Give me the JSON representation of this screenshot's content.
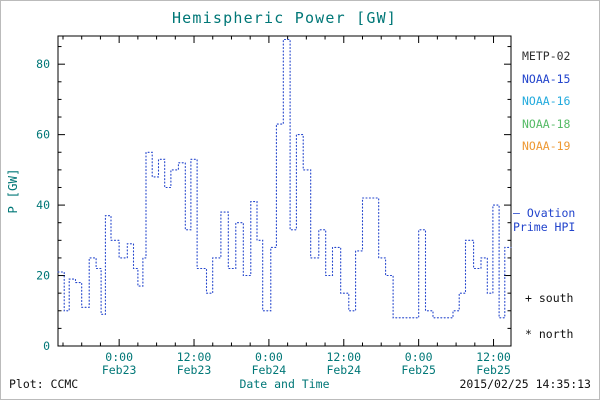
{
  "legend": {
    "satellites": [
      {
        "label": "METP-02",
        "color": "#303030"
      },
      {
        "label": "NOAA-15",
        "color": "#2244cc"
      },
      {
        "label": "NOAA-16",
        "color": "#22aadd"
      },
      {
        "label": "NOAA-18",
        "color": "#55bb66"
      },
      {
        "label": "NOAA-19",
        "color": "#ee9933"
      }
    ],
    "ovation_line1": "– Ovation",
    "ovation_line2": "Prime HPI",
    "ovation_color": "#2244cc",
    "south_label": "+ south",
    "north_label": "* north"
  },
  "footer": {
    "plot_credit": "Plot: CCMC",
    "timestamp": "2015/02/25 14:35:13"
  },
  "chart_data": {
    "type": "line",
    "title": "Hemispheric Power [GW]",
    "xlabel": "Date and Time",
    "ylabel": "P [GW]",
    "ylim": [
      0,
      88
    ],
    "yticks": [
      0,
      20,
      40,
      60,
      80
    ],
    "x_unit": "hours since 2015-02-22 00:00 UT",
    "xlim": [
      14.2,
      86.8
    ],
    "xticks": [
      {
        "t": 24,
        "time": "0:00",
        "date": "Feb23"
      },
      {
        "t": 36,
        "time": "12:00",
        "date": "Feb23"
      },
      {
        "t": 48,
        "time": "0:00",
        "date": "Feb24"
      },
      {
        "t": 60,
        "time": "12:00",
        "date": "Feb24"
      },
      {
        "t": 72,
        "time": "0:00",
        "date": "Feb25"
      },
      {
        "t": 84,
        "time": "12:00",
        "date": "Feb25"
      }
    ],
    "grid": false,
    "legend_position": "right",
    "series": [
      {
        "name": "Ovation Prime HPI",
        "style": "dotted-step",
        "color": "#2244cc",
        "points": [
          [
            14.2,
            21
          ],
          [
            15.2,
            10
          ],
          [
            16.0,
            19
          ],
          [
            17.0,
            18
          ],
          [
            18.0,
            11
          ],
          [
            19.2,
            25
          ],
          [
            20.3,
            22
          ],
          [
            21.1,
            9
          ],
          [
            21.8,
            37
          ],
          [
            22.7,
            30
          ],
          [
            24.0,
            25
          ],
          [
            25.3,
            29
          ],
          [
            26.3,
            22
          ],
          [
            27.0,
            17
          ],
          [
            27.8,
            25
          ],
          [
            28.3,
            55
          ],
          [
            29.3,
            48
          ],
          [
            30.3,
            53
          ],
          [
            31.3,
            45
          ],
          [
            32.3,
            50
          ],
          [
            33.5,
            52
          ],
          [
            34.6,
            33
          ],
          [
            35.5,
            53
          ],
          [
            36.5,
            22
          ],
          [
            38.0,
            15
          ],
          [
            39.0,
            25
          ],
          [
            40.3,
            38
          ],
          [
            41.5,
            22
          ],
          [
            42.7,
            35
          ],
          [
            43.9,
            20
          ],
          [
            45.1,
            41
          ],
          [
            46.1,
            30
          ],
          [
            47.0,
            10
          ],
          [
            48.3,
            28
          ],
          [
            49.2,
            63
          ],
          [
            50.3,
            87
          ],
          [
            51.4,
            33
          ],
          [
            52.4,
            60
          ],
          [
            53.5,
            50
          ],
          [
            54.7,
            25
          ],
          [
            56.0,
            33
          ],
          [
            57.1,
            20
          ],
          [
            58.2,
            28
          ],
          [
            59.5,
            15
          ],
          [
            60.8,
            10
          ],
          [
            61.9,
            27
          ],
          [
            63.0,
            42
          ],
          [
            64.3,
            42
          ],
          [
            65.6,
            25
          ],
          [
            66.7,
            20
          ],
          [
            67.9,
            8
          ],
          [
            70.0,
            8
          ],
          [
            72.0,
            33
          ],
          [
            73.1,
            10
          ],
          [
            74.3,
            8
          ],
          [
            76.0,
            8
          ],
          [
            77.5,
            10
          ],
          [
            78.5,
            15
          ],
          [
            79.5,
            30
          ],
          [
            80.8,
            22
          ],
          [
            82.0,
            25
          ],
          [
            83.0,
            15
          ],
          [
            83.9,
            40
          ],
          [
            84.9,
            8
          ],
          [
            85.8,
            28
          ]
        ]
      }
    ]
  }
}
